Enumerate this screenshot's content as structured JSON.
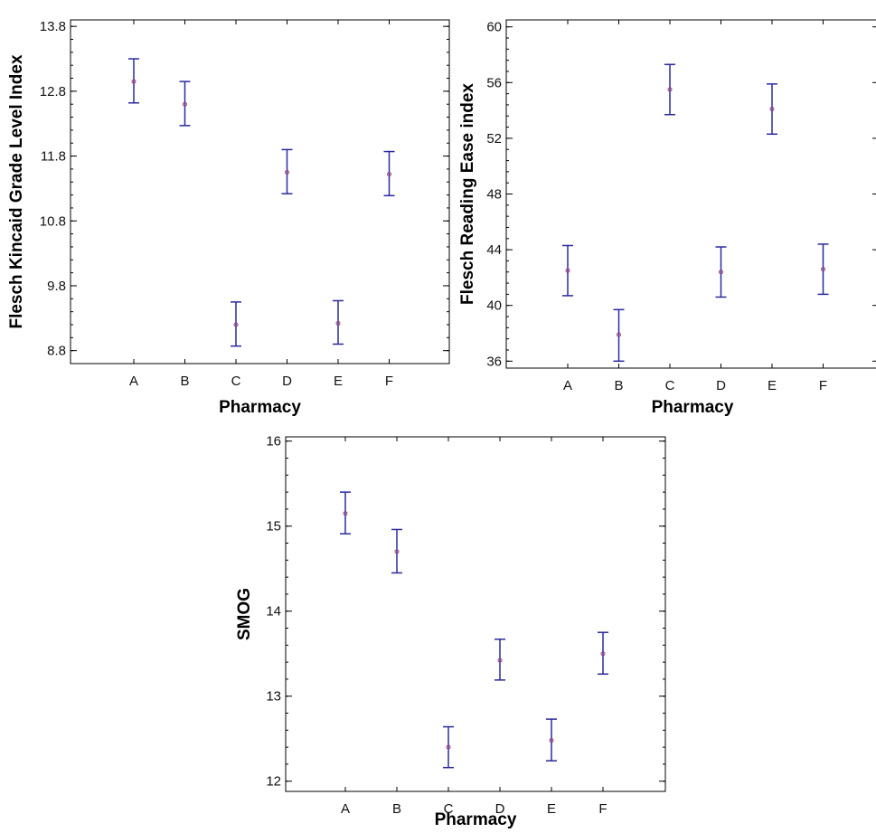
{
  "colors": {
    "errorbar": "#2a2a9e",
    "point": "#9a3a6a",
    "frame": "#000000"
  },
  "chart_data": [
    {
      "type": "scatter",
      "subtype": "means-with-error-bars",
      "xlabel": "Pharmacy",
      "ylabel": "Flesch Kincaid Grade Level Index",
      "categories": [
        "A",
        "B",
        "C",
        "D",
        "E",
        "F"
      ],
      "yticks": [
        "13.8",
        "12.8",
        "11.8",
        "10.8",
        "9.8",
        "8.8"
      ],
      "ylim": [
        8.6,
        13.9
      ],
      "mean": [
        12.95,
        12.6,
        9.2,
        11.55,
        9.22,
        11.52
      ],
      "lower": [
        12.62,
        12.27,
        8.87,
        11.22,
        8.9,
        11.19
      ],
      "upper": [
        13.3,
        12.95,
        9.55,
        11.9,
        9.57,
        11.87
      ]
    },
    {
      "type": "scatter",
      "subtype": "means-with-error-bars",
      "xlabel": "Pharmacy",
      "ylabel": "Flesch Reading Ease index",
      "categories": [
        "A",
        "B",
        "C",
        "D",
        "E",
        "F"
      ],
      "yticks": [
        "60",
        "56",
        "52",
        "48",
        "44",
        "40",
        "36"
      ],
      "ylim": [
        35.5,
        60.5
      ],
      "mean": [
        42.5,
        37.9,
        55.5,
        42.4,
        54.1,
        42.6
      ],
      "lower": [
        40.7,
        36.0,
        53.7,
        40.6,
        52.3,
        40.8
      ],
      "upper": [
        44.3,
        39.7,
        57.3,
        44.2,
        55.9,
        44.4
      ]
    },
    {
      "type": "scatter",
      "subtype": "means-with-error-bars",
      "xlabel": "Pharmacy",
      "ylabel": "SMOG",
      "categories": [
        "A",
        "B",
        "C",
        "D",
        "E",
        "F"
      ],
      "yticks": [
        "16",
        "15",
        "14",
        "13",
        "12"
      ],
      "ylim": [
        11.88,
        16.05
      ],
      "mean": [
        15.15,
        14.7,
        12.4,
        13.42,
        12.48,
        13.5
      ],
      "lower": [
        14.91,
        14.45,
        12.16,
        13.19,
        12.24,
        13.26
      ],
      "upper": [
        15.4,
        14.96,
        12.64,
        13.67,
        12.73,
        13.75
      ]
    }
  ]
}
